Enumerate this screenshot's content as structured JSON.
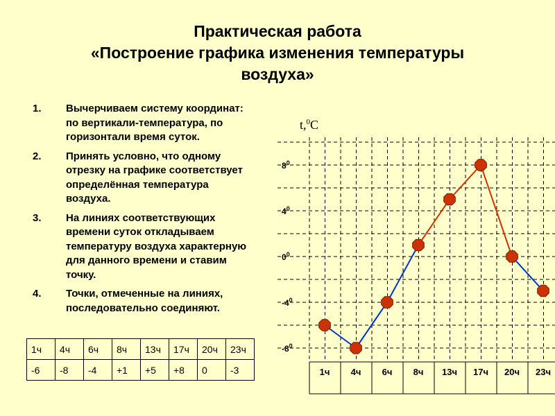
{
  "title": {
    "line1": "Практическая работа",
    "line2": "«Построение графика изменения температуры",
    "line3": "воздуха»"
  },
  "steps": [
    {
      "num": "1.",
      "text": "Вычерчиваем систему координат: по вертикали-температура, по горизонтали время суток."
    },
    {
      "num": "2.",
      "text": "Принять условно, что одному отрезку на графике соответствует определённая температура воздуха."
    },
    {
      "num": "3.",
      "text": "На линиях соответствующих времени суток откладываем температуру воздуха характерную для данного времени и ставим точку."
    },
    {
      "num": "4.",
      "text": "Точки, отмеченные на линиях, последовательно соединяют."
    }
  ],
  "table": {
    "times": [
      "1ч",
      "4ч",
      "6ч",
      "8ч",
      "13ч",
      "17ч",
      "20ч",
      "23ч"
    ],
    "temps": [
      "-6",
      "-8",
      "-4",
      "+1",
      "+5",
      "+8",
      "0",
      "-3"
    ]
  },
  "colors": {
    "background": "#ffffcc",
    "marker_fill": "#cc3300",
    "rising_line": "#cc3300",
    "falling_line": "#0033cc",
    "grid": "#000000"
  },
  "chart_data": {
    "type": "line",
    "title": "",
    "ylabel": "t,",
    "ylabel_sup": "0",
    "ylabel_unit": "С",
    "xlabel": "",
    "categories": [
      "1ч",
      "4ч",
      "6ч",
      "8ч",
      "13ч",
      "17ч",
      "20ч",
      "23ч"
    ],
    "values": [
      -6,
      -8,
      -4,
      1,
      5,
      8,
      0,
      -3
    ],
    "yticks": [
      {
        "value": 8,
        "label": "8"
      },
      {
        "value": 4,
        "label": "4"
      },
      {
        "value": 0,
        "label": "0"
      },
      {
        "value": -4,
        "label": "-4"
      },
      {
        "value": -8,
        "label": "-8"
      }
    ],
    "ytick_sup": "0",
    "ylim": [
      -10,
      10
    ],
    "grid": "dashed",
    "legend": "none"
  }
}
